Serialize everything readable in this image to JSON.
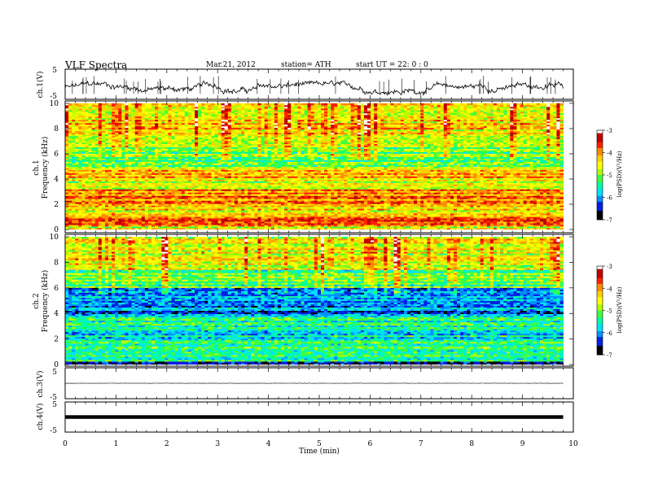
{
  "header": {
    "title": "VLF  Spectra",
    "date": "Mar.21, 2012",
    "station": "station= ATH",
    "start": "start  UT  =    22: 0   : 0"
  },
  "colors": {
    "spectral_scale": [
      "#000000",
      "#0000cc",
      "#0080ff",
      "#00e0ff",
      "#00ff80",
      "#80ff00",
      "#ffff00",
      "#ffa000",
      "#ff3000",
      "#c00000",
      "#ffffff"
    ]
  },
  "chart_data": [
    {
      "type": "line",
      "panel": "ch1-waveform",
      "ylabel": "ch.1(V)",
      "yticks": [
        "5",
        "-5"
      ],
      "ylim": [
        -5,
        5
      ],
      "xlim": [
        0,
        10
      ],
      "data_end_min": 9.8,
      "description_values": {
        "mean": -1.2,
        "amplitude": 1.8
      }
    },
    {
      "type": "heatmap",
      "panel": "ch1-spectrogram",
      "ylabel_channel": "ch.1",
      "ylabel": "Frequency  (kHz)",
      "yticks": [
        "0",
        "2",
        "4",
        "6",
        "8",
        "10"
      ],
      "ylim": [
        0,
        10
      ],
      "xlim": [
        0,
        10
      ],
      "data_end_min": 9.8,
      "colorbar": {
        "ticks": [
          "-3",
          "-4",
          "-5",
          "-6",
          "-7"
        ],
        "label": "log(PSD)(V²/Hz)",
        "range": [
          -7,
          -3
        ]
      },
      "band_levels": [
        {
          "f0": 0.0,
          "f1": 0.3,
          "level": -4.6
        },
        {
          "f0": 0.3,
          "f1": 1.0,
          "level": -3.6
        },
        {
          "f0": 1.0,
          "f1": 2.0,
          "level": -4.5
        },
        {
          "f0": 2.0,
          "f1": 3.2,
          "level": -3.9
        },
        {
          "f0": 3.2,
          "f1": 4.0,
          "level": -4.6
        },
        {
          "f0": 4.0,
          "f1": 5.0,
          "level": -4.3
        },
        {
          "f0": 5.0,
          "f1": 5.9,
          "level": -5.1
        },
        {
          "f0": 5.9,
          "f1": 7.5,
          "level": -5.0
        },
        {
          "f0": 7.5,
          "f1": 10.0,
          "level": -4.4
        }
      ]
    },
    {
      "type": "heatmap",
      "panel": "ch2-spectrogram",
      "ylabel_channel": "ch.2",
      "ylabel": "Frequency  (kHz)",
      "yticks": [
        "0",
        "2",
        "4",
        "6",
        "8",
        "10"
      ],
      "ylim": [
        0,
        10
      ],
      "xlim": [
        0,
        10
      ],
      "data_end_min": 9.8,
      "colorbar": {
        "ticks": [
          "-3",
          "-4",
          "-5",
          "-6",
          "-7"
        ],
        "label": "log(PSD)(V²/Hz)",
        "range": [
          -7,
          -3
        ]
      },
      "band_levels": [
        {
          "f0": 0.0,
          "f1": 0.3,
          "level": -6.6
        },
        {
          "f0": 0.3,
          "f1": 1.0,
          "level": -5.4
        },
        {
          "f0": 1.0,
          "f1": 2.0,
          "level": -5.3
        },
        {
          "f0": 2.0,
          "f1": 3.0,
          "level": -5.6
        },
        {
          "f0": 3.0,
          "f1": 4.0,
          "level": -5.5
        },
        {
          "f0": 4.0,
          "f1": 5.0,
          "level": -6.1
        },
        {
          "f0": 5.0,
          "f1": 6.0,
          "level": -5.9
        },
        {
          "f0": 6.0,
          "f1": 7.5,
          "level": -5.2
        },
        {
          "f0": 7.5,
          "f1": 10.0,
          "level": -4.6
        }
      ]
    },
    {
      "type": "line",
      "panel": "ch3-waveform",
      "ylabel": "ch.3(V)",
      "yticks": [
        "5",
        "-5"
      ],
      "ylim": [
        -5,
        5
      ],
      "xlim": [
        0,
        10
      ],
      "data_end_min": 9.8,
      "description_values": {
        "mean": 0.0,
        "amplitude": 0.1
      }
    },
    {
      "type": "line",
      "panel": "ch4-waveform",
      "ylabel": "ch.4(V)",
      "yticks": [
        "5",
        "-5"
      ],
      "ylim": [
        -5,
        5
      ],
      "xlim": [
        0,
        10
      ],
      "data_end_min": 9.8,
      "description_values": {
        "mean": 0.0,
        "amplitude": 0.3
      }
    }
  ],
  "xaxis": {
    "label": "Time  (min)",
    "ticks": [
      "0",
      "1",
      "2",
      "3",
      "4",
      "5",
      "6",
      "7",
      "8",
      "9",
      "10"
    ],
    "range": [
      0,
      10
    ]
  }
}
